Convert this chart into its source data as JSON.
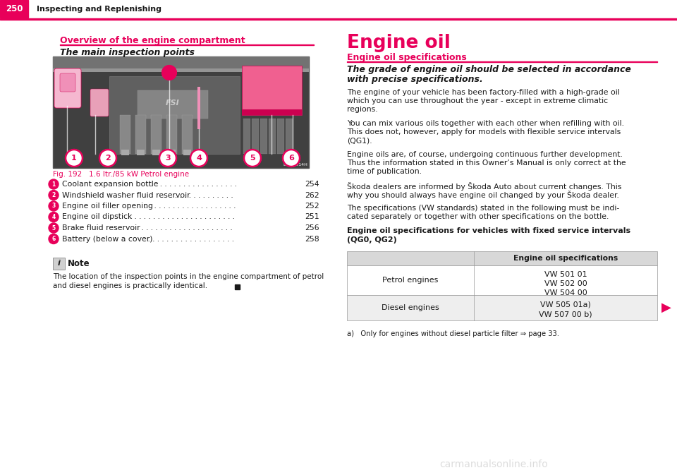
{
  "page_bg": "#ffffff",
  "header_bg": "#e8005a",
  "header_text_color": "#ffffff",
  "header_page_num": "250",
  "header_title": "Inspecting and Replenishing",
  "pink_color": "#e8005a",
  "black_color": "#1a1a1a",
  "left_section_heading": "Overview of the engine compartment",
  "left_subheading": "The main inspection points",
  "fig_caption": "Fig. 192   1.6 ltr./85 kW Petrol engine",
  "items": [
    {
      "num": "1",
      "text": "Coolant expansion bottle",
      "dots": " . . . . . . . . . . . . . . . . . . . . .",
      "page": "254"
    },
    {
      "num": "2",
      "text": "Windshield washer fluid reservoir",
      "dots": " . . . . . . . . . . . . . .",
      "page": "262"
    },
    {
      "num": "3",
      "text": "Engine oil filler opening",
      "dots": " . . . . . . . . . . . . . . . . . . . .",
      "page": "252"
    },
    {
      "num": "4",
      "text": "Engine oil dipstick",
      "dots": " . . . . . . . . . . . . . . . . . . . . . . . .",
      "page": "251"
    },
    {
      "num": "5",
      "text": "Brake fluid reservoir",
      "dots": " . . . . . . . . . . . . . . . . . . . . . .",
      "page": "256"
    },
    {
      "num": "6",
      "text": "Battery (below a cover)",
      "dots": " . . . . . . . . . . . . . . . . . . . . .",
      "page": "258"
    }
  ],
  "note_text": "The location of the inspection points in the engine compartment of petrol\nand diesel engines is practically identical.",
  "right_heading": "Engine oil",
  "right_subheading": "Engine oil specifications",
  "right_italic": "The grade of engine oil should be selected in accordance\nwith precise specifications.",
  "right_paragraphs": [
    "The engine of your vehicle has been factory-filled with a high-grade oil\nwhich you can use throughout the year - except in extreme climatic\nregions.",
    "You can mix various oils together with each other when refilling with oil.\nThis does not, however, apply for models with flexible service intervals\n(QG1).",
    "Engine oils are, of course, undergoing continuous further development.\nThus the information stated in this Owner’s Manual is only correct at the\ntime of publication.",
    "Škoda dealers are informed by Škoda Auto about current changes. This\nwhy you should always have engine oil changed by your Škoda dealer.",
    "The specifications (VW standards) stated in the following must be indi-\ncated separately or together with other specifications on the bottle."
  ],
  "table_heading_bold": "Engine oil specifications for vehicles with fixed service intervals\n(QG0, QG2)",
  "table_col_header": "Engine oil specifications",
  "table_rows": [
    {
      "label": "Petrol engines",
      "specs": "VW 501 01\nVW 502 00\nVW 504 00"
    },
    {
      "label": "Diesel engines",
      "specs": "VW 505 01a)\nVW 507 00 b)"
    }
  ],
  "footnote": "a)   Only for engines without diesel particle filter ⇒ page 33.",
  "watermark": "carmanualsonline.info"
}
